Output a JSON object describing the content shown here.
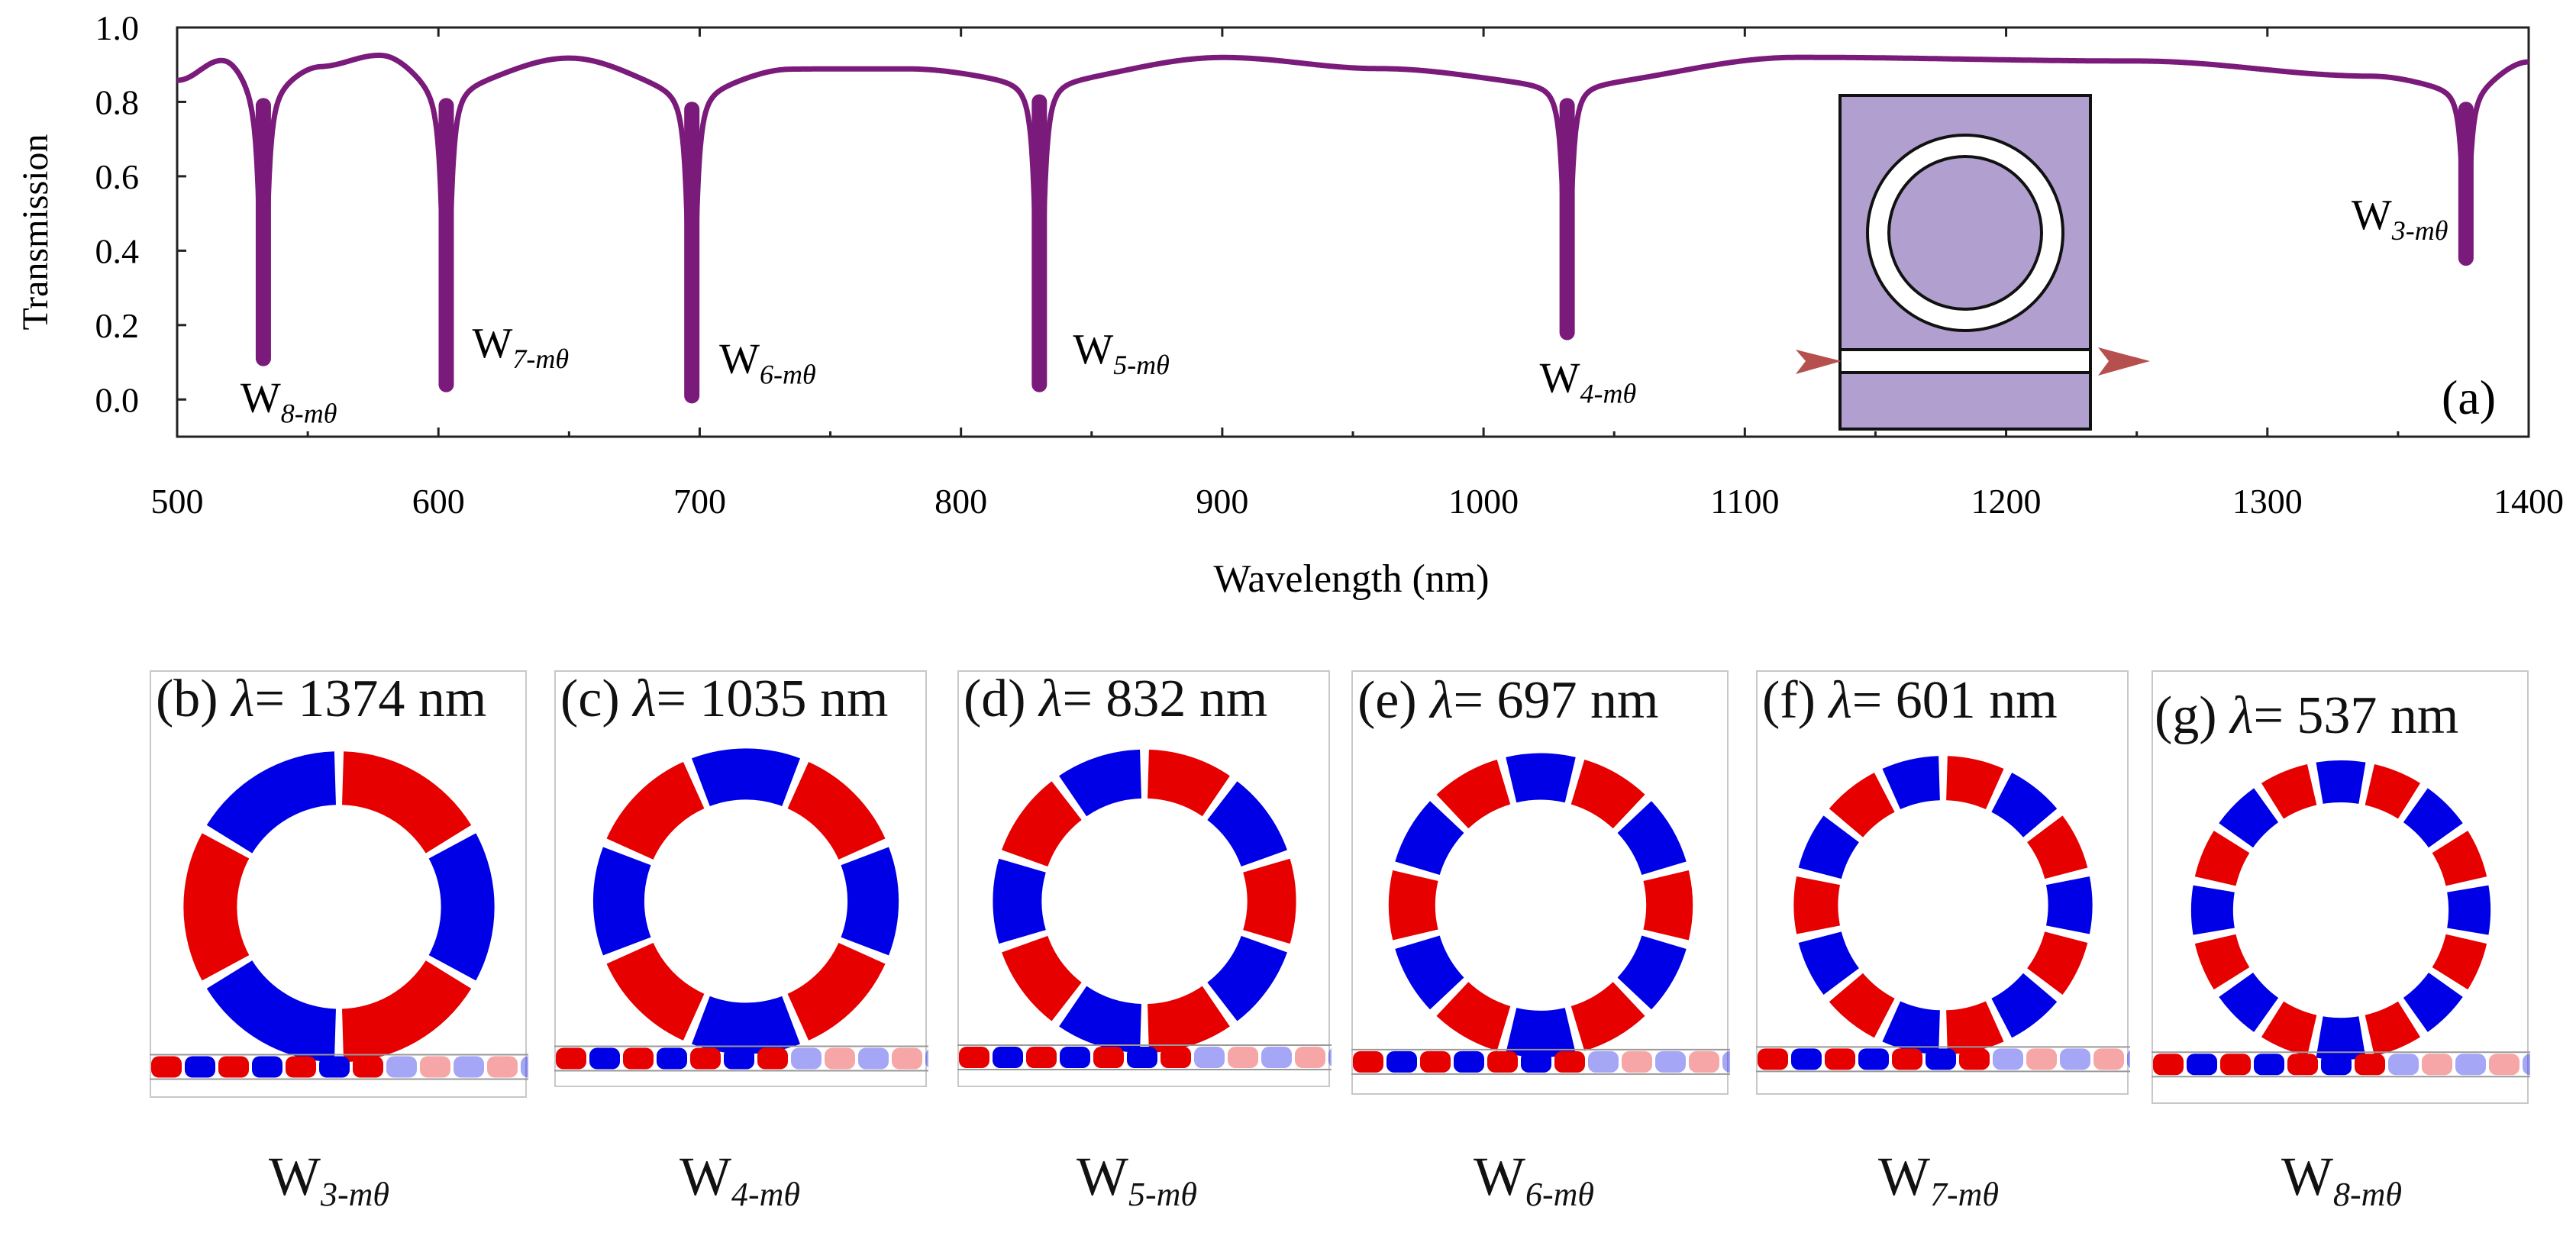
{
  "chart_data": {
    "type": "line",
    "title": "",
    "xlabel": "Wavelength (nm)",
    "ylabel": "Transmission",
    "xlim": [
      500,
      1400
    ],
    "ylim": [
      -0.1,
      1.0
    ],
    "xticks": [
      500,
      600,
      700,
      800,
      900,
      1000,
      1100,
      1200,
      1300,
      1400
    ],
    "yticks": [
      "1.0",
      "0.8",
      "0.6",
      "0.4",
      "0.2",
      "0.0"
    ],
    "panel_label": "(a)",
    "series": [
      {
        "name": "Transmission",
        "color": "#7a1a7a",
        "baseline": [
          {
            "x": 500,
            "y": 0.86
          },
          {
            "x": 518,
            "y": 0.92
          },
          {
            "x": 533,
            "y": 0.85
          },
          {
            "x": 555,
            "y": 0.9
          },
          {
            "x": 578,
            "y": 0.93
          },
          {
            "x": 603,
            "y": 0.85
          },
          {
            "x": 650,
            "y": 0.92
          },
          {
            "x": 697,
            "y": 0.84
          },
          {
            "x": 735,
            "y": 0.89
          },
          {
            "x": 780,
            "y": 0.89
          },
          {
            "x": 830,
            "y": 0.86
          },
          {
            "x": 900,
            "y": 0.92
          },
          {
            "x": 960,
            "y": 0.89
          },
          {
            "x": 1032,
            "y": 0.85
          },
          {
            "x": 1120,
            "y": 0.92
          },
          {
            "x": 1250,
            "y": 0.91
          },
          {
            "x": 1340,
            "y": 0.87
          },
          {
            "x": 1376,
            "y": 0.84
          },
          {
            "x": 1400,
            "y": 0.91
          }
        ],
        "dips": [
          {
            "x": 533,
            "min": 0.11,
            "label": "W",
            "sub": "8-mθ"
          },
          {
            "x": 603,
            "min": 0.04,
            "label": "W",
            "sub": "7-mθ"
          },
          {
            "x": 697,
            "min": 0.01,
            "label": "W",
            "sub": "6-mθ"
          },
          {
            "x": 830,
            "min": 0.04,
            "label": "W",
            "sub": "5-mθ"
          },
          {
            "x": 1032,
            "min": 0.18,
            "label": "W",
            "sub": "4-mθ"
          },
          {
            "x": 1376,
            "min": 0.38,
            "label": "W",
            "sub": "3-mθ"
          }
        ]
      }
    ]
  },
  "panels": [
    {
      "id": "b",
      "prefix": "(b) ",
      "lambda": "λ",
      "value": "= 1374 nm",
      "mode": "W",
      "mode_sub": "3-mθ",
      "segments": 6
    },
    {
      "id": "c",
      "prefix": "(c) ",
      "lambda": "λ",
      "value": "= 1035 nm",
      "mode": "W",
      "mode_sub": "4-mθ",
      "segments": 8
    },
    {
      "id": "d",
      "prefix": "(d) ",
      "lambda": "λ",
      "value": "= 832 nm",
      "mode": "W",
      "mode_sub": "5-mθ",
      "segments": 10
    },
    {
      "id": "e",
      "prefix": "(e) ",
      "lambda": "λ",
      "value": "= 697 nm",
      "mode": "W",
      "mode_sub": "6-mθ",
      "segments": 12
    },
    {
      "id": "f",
      "prefix": "(f) ",
      "lambda": "λ",
      "value": "= 601 nm",
      "mode": "W",
      "mode_sub": "7-mθ",
      "segments": 14
    },
    {
      "id": "g",
      "prefix": "(g) ",
      "lambda": "λ",
      "value": "= 537 nm",
      "mode": "W",
      "mode_sub": "8-mθ",
      "segments": 16
    }
  ],
  "colors": {
    "curve": "#7a1a7a",
    "field_positive": "#e60000",
    "field_negative": "#0000e6",
    "inset_fill": "#b1a0cf",
    "arrow": "#b5504e"
  }
}
